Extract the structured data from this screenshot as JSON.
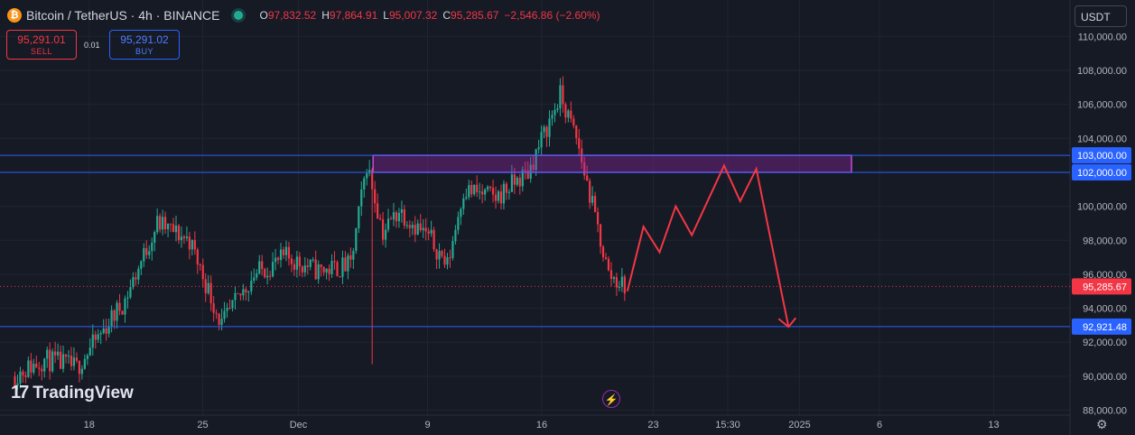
{
  "header": {
    "coin_glyph": "₿",
    "symbol_title": "Bitcoin / TetherUS · 4h · BINANCE",
    "ohlc": [
      {
        "key": "O",
        "value": "97,832.52"
      },
      {
        "key": "H",
        "value": "97,864.91"
      },
      {
        "key": "L",
        "value": "95,007.32"
      },
      {
        "key": "C",
        "value": "95,285.67"
      }
    ],
    "change": "−2,546.86 (−2.60%)"
  },
  "trade": {
    "sell_price": "95,291.01",
    "sell_label": "SELL",
    "quantity": "0.01",
    "buy_price": "95,291.02",
    "buy_label": "BUY"
  },
  "currency": "USDT",
  "brand": "TradingView",
  "colors": {
    "up": "#22ab94",
    "down": "#f23645",
    "level": "#2962ff",
    "zone": "#9c27b0",
    "bg": "#161a25"
  },
  "chart_data": {
    "type": "candlestick",
    "symbol": "BTCUSDT",
    "timeframe": "4h",
    "ylim": [
      88000,
      110000
    ],
    "y_ticks": [
      88000,
      90000,
      92000,
      94000,
      96000,
      98000,
      100000,
      102000,
      104000,
      106000,
      108000,
      110000
    ],
    "x_tick_labels": [
      "18",
      "25",
      "Dec",
      "9",
      "16",
      "23",
      "15:30",
      "2025",
      "6",
      "13"
    ],
    "last_price": 95285.67,
    "price_tags": [
      {
        "value": 103000,
        "label": "103,000.00",
        "kind": "level"
      },
      {
        "value": 102000,
        "label": "102,000.00",
        "kind": "level"
      },
      {
        "value": 95285.67,
        "label": "95,285.67",
        "kind": "last"
      },
      {
        "value": 92921.48,
        "label": "92,921.48",
        "kind": "level"
      }
    ],
    "horizontal_levels": [
      103000,
      102000,
      92921.48
    ],
    "resistance_zone": {
      "low": 102000,
      "high": 103000
    },
    "price_anchors": [
      {
        "date": "2024-11-13",
        "price": 90000
      },
      {
        "date": "2024-11-15",
        "price": 91000
      },
      {
        "date": "2024-11-17",
        "price": 90500
      },
      {
        "date": "2024-11-20",
        "price": 94500
      },
      {
        "date": "2024-11-22",
        "price": 99000
      },
      {
        "date": "2024-11-24",
        "price": 98000
      },
      {
        "date": "2024-11-26",
        "price": 93000
      },
      {
        "date": "2024-11-28",
        "price": 96000
      },
      {
        "date": "2024-11-30",
        "price": 97000
      },
      {
        "date": "2024-12-02",
        "price": 96200
      },
      {
        "date": "2024-12-04",
        "price": 96500
      },
      {
        "date": "2024-12-05",
        "price": 102500
      },
      {
        "date": "2024-12-06",
        "price": 98500
      },
      {
        "date": "2024-12-07",
        "price": 99800
      },
      {
        "date": "2024-12-09",
        "price": 98000
      },
      {
        "date": "2024-12-10",
        "price": 96500
      },
      {
        "date": "2024-12-11",
        "price": 101000
      },
      {
        "date": "2024-12-13",
        "price": 100500
      },
      {
        "date": "2024-12-15",
        "price": 102000
      },
      {
        "date": "2024-12-17",
        "price": 106500
      },
      {
        "date": "2024-12-18",
        "price": 104000
      },
      {
        "date": "2024-12-19",
        "price": 100000
      },
      {
        "date": "2024-12-20",
        "price": 96000
      },
      {
        "date": "2024-12-21",
        "price": 95285.67
      }
    ],
    "projection_path": [
      {
        "date": "2024-12-21",
        "price": 95000
      },
      {
        "date": "2024-12-22",
        "price": 98800
      },
      {
        "date": "2024-12-23",
        "price": 97300
      },
      {
        "date": "2024-12-24",
        "price": 100000
      },
      {
        "date": "2024-12-25",
        "price": 98300
      },
      {
        "date": "2024-12-27",
        "price": 102400
      },
      {
        "date": "2024-12-28",
        "price": 100300
      },
      {
        "date": "2024-12-29",
        "price": 102200
      },
      {
        "date": "2024-12-31",
        "price": 92900
      }
    ]
  }
}
